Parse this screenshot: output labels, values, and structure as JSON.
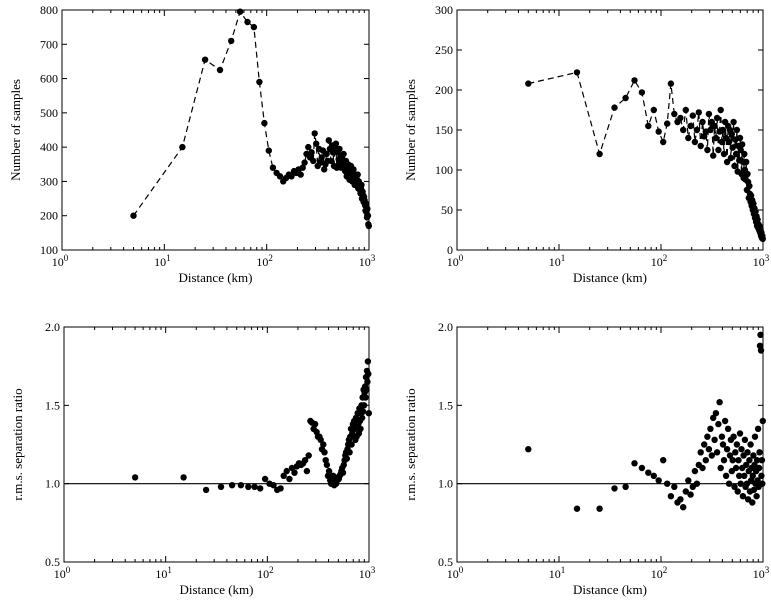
{
  "colors": {
    "ink": "#000000",
    "background": "#ffffff"
  },
  "chart_data": [
    {
      "id": "top-left",
      "type": "line",
      "xscale": "log",
      "xlim": [
        1,
        1000
      ],
      "ylim": [
        100,
        800
      ],
      "xlabel": "Distance (km)",
      "ylabel": "Number of samples",
      "xticks": [
        {
          "v": 1,
          "b": "10",
          "e": "0"
        },
        {
          "v": 10,
          "b": "10",
          "e": "1"
        },
        {
          "v": 100,
          "b": "10",
          "e": "2"
        },
        {
          "v": 1000,
          "b": "10",
          "e": "3"
        }
      ],
      "yticks": [
        100,
        200,
        300,
        400,
        500,
        600,
        700,
        800
      ],
      "line_style": "dashed",
      "reference_line": null,
      "series": [
        {
          "x": [
            5,
            15,
            25,
            35,
            45,
            55,
            65,
            75,
            85,
            95,
            105,
            115,
            125,
            135,
            145,
            155,
            165,
            175,
            185,
            195,
            205,
            215,
            225,
            235,
            245,
            255,
            265,
            275,
            285,
            295,
            305,
            315,
            325,
            335,
            345,
            355,
            365,
            375,
            385,
            395,
            405,
            415,
            425,
            435,
            445,
            455,
            465,
            475,
            485,
            495,
            505,
            515,
            525,
            535,
            545,
            555,
            565,
            575,
            585,
            595,
            605,
            615,
            625,
            635,
            645,
            655,
            665,
            675,
            685,
            695,
            705,
            715,
            725,
            735,
            745,
            755,
            765,
            775,
            785,
            795,
            805,
            815,
            825,
            835,
            845,
            855,
            865,
            875,
            885,
            895,
            905,
            915,
            925,
            935,
            945,
            955,
            965,
            975,
            985,
            995
          ],
          "y": [
            200,
            400,
            655,
            625,
            710,
            795,
            765,
            750,
            590,
            470,
            390,
            340,
            325,
            315,
            300,
            310,
            320,
            315,
            330,
            325,
            335,
            320,
            340,
            355,
            380,
            400,
            370,
            385,
            360,
            440,
            410,
            345,
            395,
            355,
            370,
            390,
            335,
            350,
            380,
            360,
            420,
            395,
            360,
            405,
            385,
            345,
            400,
            410,
            340,
            385,
            365,
            395,
            350,
            340,
            370,
            355,
            380,
            345,
            330,
            360,
            315,
            340,
            350,
            320,
            305,
            330,
            345,
            310,
            300,
            325,
            335,
            315,
            290,
            310,
            320,
            295,
            305,
            320,
            280,
            300,
            290,
            275,
            265,
            280,
            290,
            250,
            270,
            260,
            240,
            255,
            245,
            230,
            215,
            235,
            210,
            195,
            220,
            200,
            175,
            170
          ]
        }
      ]
    },
    {
      "id": "top-right",
      "type": "line",
      "xscale": "log",
      "xlim": [
        1,
        1000
      ],
      "ylim": [
        0,
        300
      ],
      "xlabel": "Distance (km)",
      "ylabel": "Number of samples",
      "xticks": [
        {
          "v": 1,
          "b": "10",
          "e": "0"
        },
        {
          "v": 10,
          "b": "10",
          "e": "1"
        },
        {
          "v": 100,
          "b": "10",
          "e": "2"
        },
        {
          "v": 1000,
          "b": "10",
          "e": "3"
        }
      ],
      "yticks": [
        0,
        50,
        100,
        150,
        200,
        250,
        300
      ],
      "line_style": "dashed",
      "reference_line": null,
      "series": [
        {
          "x": [
            5,
            15,
            25,
            35,
            45,
            55,
            65,
            75,
            85,
            95,
            105,
            115,
            125,
            135,
            145,
            155,
            165,
            175,
            185,
            195,
            205,
            215,
            225,
            235,
            245,
            255,
            265,
            275,
            285,
            295,
            305,
            315,
            325,
            335,
            345,
            355,
            365,
            375,
            385,
            395,
            405,
            415,
            425,
            435,
            445,
            455,
            465,
            475,
            485,
            495,
            505,
            515,
            525,
            535,
            545,
            555,
            565,
            575,
            585,
            595,
            605,
            615,
            625,
            635,
            645,
            655,
            665,
            675,
            685,
            695,
            705,
            715,
            725,
            735,
            745,
            755,
            765,
            775,
            785,
            795,
            805,
            815,
            825,
            835,
            845,
            855,
            865,
            875,
            885,
            895,
            905,
            915,
            925,
            935,
            945,
            955,
            965,
            975,
            985,
            995
          ],
          "y": [
            208,
            222,
            120,
            178,
            190,
            212,
            197,
            155,
            175,
            148,
            135,
            158,
            208,
            170,
            160,
            165,
            150,
            175,
            140,
            155,
            168,
            135,
            150,
            172,
            130,
            160,
            142,
            148,
            125,
            170,
            150,
            160,
            118,
            155,
            140,
            165,
            125,
            148,
            175,
            135,
            150,
            120,
            160,
            140,
            110,
            155,
            135,
            150,
            115,
            145,
            128,
            160,
            105,
            138,
            120,
            150,
            98,
            130,
            112,
            140,
            125,
            95,
            132,
            110,
            90,
            120,
            100,
            88,
            110,
            75,
            95,
            85,
            65,
            80,
            70,
            60,
            68,
            55,
            62,
            50,
            58,
            45,
            52,
            40,
            48,
            35,
            42,
            30,
            38,
            28,
            32,
            25,
            30,
            22,
            26,
            18,
            22,
            15,
            18,
            14
          ]
        }
      ]
    },
    {
      "id": "bottom-left",
      "type": "scatter",
      "xscale": "log",
      "xlim": [
        1,
        1000
      ],
      "ylim": [
        0.5,
        2.0
      ],
      "xlabel": "Distance (km)",
      "ylabel": "r.m.s. separation ratio",
      "xticks": [
        {
          "v": 1,
          "b": "10",
          "e": "0"
        },
        {
          "v": 10,
          "b": "10",
          "e": "1"
        },
        {
          "v": 100,
          "b": "10",
          "e": "2"
        },
        {
          "v": 1000,
          "b": "10",
          "e": "3"
        }
      ],
      "yticks": [
        "0.5",
        "1.0",
        "1.5",
        "2.0"
      ],
      "line_style": "none",
      "reference_line": 1.0,
      "series": [
        {
          "x": [
            5,
            15,
            25,
            35,
            45,
            55,
            65,
            75,
            85,
            95,
            105,
            115,
            125,
            135,
            145,
            155,
            165,
            175,
            185,
            195,
            205,
            215,
            225,
            235,
            245,
            255,
            265,
            275,
            285,
            295,
            305,
            315,
            325,
            335,
            345,
            355,
            365,
            375,
            385,
            395,
            405,
            415,
            425,
            435,
            445,
            455,
            465,
            475,
            485,
            495,
            505,
            515,
            525,
            535,
            545,
            555,
            565,
            575,
            585,
            595,
            605,
            615,
            625,
            635,
            645,
            655,
            665,
            675,
            685,
            695,
            705,
            715,
            725,
            735,
            745,
            755,
            765,
            775,
            785,
            795,
            805,
            815,
            825,
            835,
            845,
            855,
            865,
            875,
            885,
            895,
            905,
            915,
            925,
            935,
            945,
            955,
            965,
            975,
            985,
            995
          ],
          "y": [
            1.04,
            1.04,
            0.96,
            0.98,
            0.99,
            0.99,
            0.98,
            0.98,
            0.97,
            1.03,
            1.0,
            0.99,
            0.96,
            0.97,
            1.05,
            1.08,
            1.03,
            1.1,
            1.07,
            1.11,
            1.13,
            1.12,
            1.13,
            1.15,
            1.08,
            1.18,
            1.4,
            1.39,
            1.35,
            1.38,
            1.33,
            1.3,
            1.3,
            1.28,
            1.22,
            1.25,
            1.2,
            1.15,
            1.12,
            1.05,
            1.08,
            1.02,
            1.0,
            1.03,
            1.05,
            0.99,
            1.01,
            1.0,
            1.02,
            1.04,
            1.03,
            1.05,
            1.06,
            1.08,
            1.1,
            1.07,
            1.12,
            1.15,
            1.18,
            1.2,
            1.16,
            1.22,
            1.25,
            1.28,
            1.2,
            1.3,
            1.35,
            1.25,
            1.32,
            1.38,
            1.3,
            1.4,
            1.35,
            1.28,
            1.42,
            1.3,
            1.36,
            1.45,
            1.38,
            1.32,
            1.48,
            1.4,
            1.35,
            1.45,
            1.5,
            1.42,
            1.55,
            1.46,
            1.6,
            1.5,
            1.58,
            1.62,
            1.55,
            1.68,
            1.6,
            1.72,
            1.65,
            1.78,
            1.7,
            1.45
          ]
        }
      ]
    },
    {
      "id": "bottom-right",
      "type": "scatter",
      "xscale": "log",
      "xlim": [
        1,
        1000
      ],
      "ylim": [
        0.5,
        2.0
      ],
      "xlabel": "Distance (km)",
      "ylabel": "r.m.s. separation ratio",
      "xticks": [
        {
          "v": 1,
          "b": "10",
          "e": "0"
        },
        {
          "v": 10,
          "b": "10",
          "e": "1"
        },
        {
          "v": 100,
          "b": "10",
          "e": "2"
        },
        {
          "v": 1000,
          "b": "10",
          "e": "3"
        }
      ],
      "yticks": [
        "0.5",
        "1.0",
        "1.5",
        "2.0"
      ],
      "line_style": "none",
      "reference_line": 1.0,
      "series": [
        {
          "x": [
            5,
            15,
            25,
            35,
            45,
            55,
            65,
            75,
            85,
            95,
            105,
            115,
            125,
            135,
            145,
            155,
            165,
            175,
            185,
            195,
            205,
            215,
            225,
            235,
            245,
            255,
            265,
            275,
            285,
            295,
            305,
            315,
            325,
            335,
            345,
            355,
            365,
            375,
            385,
            395,
            405,
            415,
            425,
            435,
            445,
            455,
            465,
            475,
            485,
            495,
            505,
            515,
            525,
            535,
            545,
            555,
            565,
            575,
            585,
            595,
            605,
            615,
            625,
            635,
            645,
            655,
            665,
            675,
            685,
            695,
            705,
            715,
            725,
            735,
            745,
            755,
            765,
            775,
            785,
            795,
            805,
            815,
            825,
            835,
            845,
            855,
            865,
            875,
            885,
            895,
            905,
            915,
            925,
            935,
            945,
            955,
            965,
            975,
            985,
            995
          ],
          "y": [
            1.22,
            0.84,
            0.84,
            0.97,
            0.98,
            1.13,
            1.1,
            1.07,
            1.05,
            1.02,
            1.15,
            1.0,
            0.92,
            0.98,
            0.88,
            0.9,
            0.85,
            0.95,
            1.02,
            0.93,
            0.98,
            1.08,
            1.0,
            1.12,
            1.2,
            1.1,
            1.25,
            1.15,
            1.3,
            1.22,
            1.35,
            1.18,
            1.42,
            1.28,
            1.45,
            1.2,
            1.38,
            1.52,
            1.1,
            1.3,
            1.25,
            1.15,
            1.4,
            1.05,
            1.22,
            1.35,
            1.0,
            1.18,
            1.28,
            1.08,
            1.15,
            1.3,
            0.98,
            1.2,
            1.1,
            1.25,
            0.95,
            1.15,
            1.05,
            1.32,
            1.0,
            1.22,
            1.1,
            0.92,
            1.18,
            1.05,
            1.28,
            0.98,
            1.12,
            1.0,
            1.2,
            0.9,
            1.08,
            1.15,
            0.95,
            1.25,
            1.02,
            1.1,
            0.88,
            1.05,
            1.18,
            0.96,
            1.12,
            1.3,
            1.0,
            1.08,
            0.92,
            1.15,
            1.02,
            1.35,
            0.98,
            1.1,
            1.2,
            1.88,
            1.95,
            1.85,
            1.05,
            1.15,
            1.0,
            1.4
          ]
        }
      ]
    }
  ]
}
